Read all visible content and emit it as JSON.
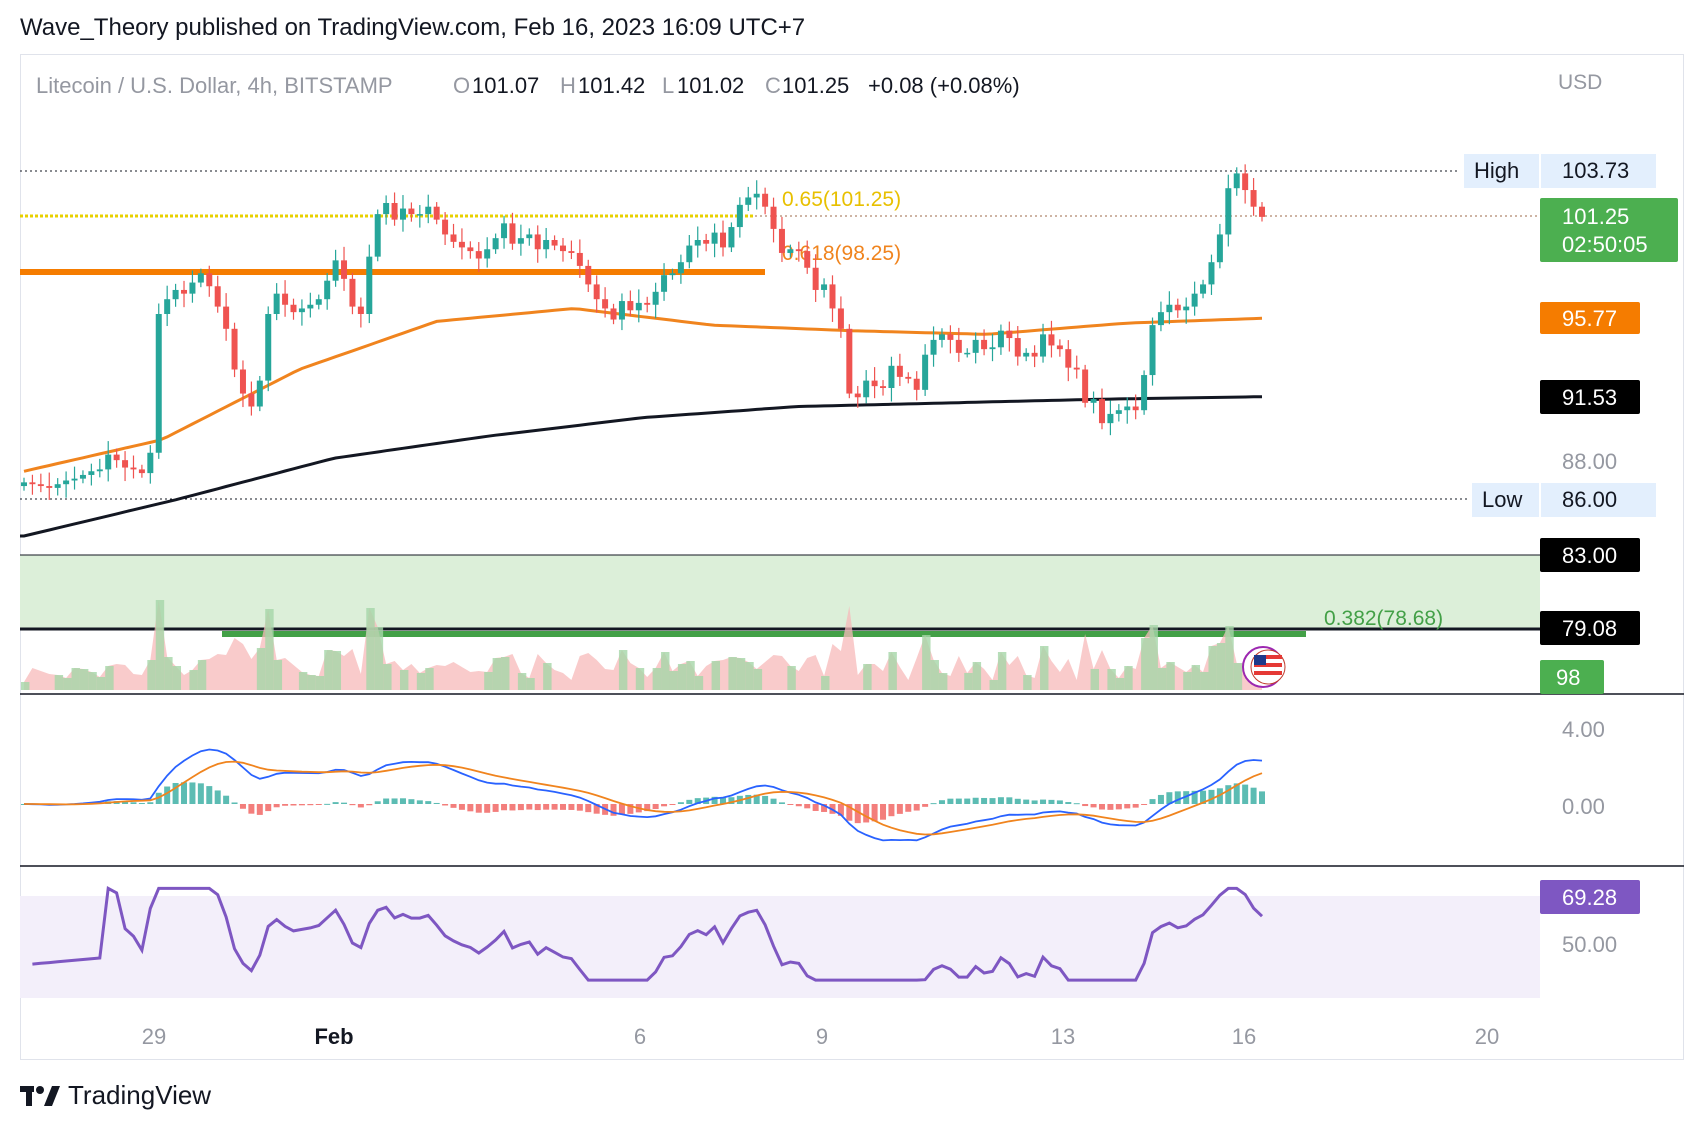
{
  "publisher_line": "Wave_Theory published on TradingView.com, Feb 16, 2023 16:09 UTC+7",
  "brand": "TradingView",
  "colors": {
    "up": "#26a69a",
    "down": "#ef5350",
    "ma50": "#f0841e",
    "ma200": "#131722",
    "fib": "#e8c000",
    "support": "#43a047",
    "rsi": "#7e57c2",
    "macd": "#2962ff",
    "signal": "#f0841e",
    "price_tag": "#4caf50"
  },
  "header": {
    "symbol": "Litecoin / U.S. Dollar, 4h, BITSTAMP",
    "o_label": "O",
    "o": "101.07",
    "h_label": "H",
    "h": "101.42",
    "l_label": "L",
    "l": "101.02",
    "c_label": "C",
    "c": "101.25",
    "change": "+0.08 (+0.08%)",
    "currency": "USD"
  },
  "price_axis": {
    "high_label": "High",
    "high_value": "103.73",
    "low_label": "Low",
    "low_value": "86.00",
    "last_price": "101.25",
    "countdown": "02:50:05",
    "ma50_value": "95.77",
    "ma200_value": "91.53",
    "tick_88": "88.00",
    "zone_top": "83.00",
    "zone_bottom": "79.08",
    "volume_value": "98"
  },
  "macd_axis": {
    "tick_top": "4.00",
    "tick_zero": "0.00"
  },
  "rsi_axis": {
    "tick_mid": "50.00",
    "rsi_value": "69.28"
  },
  "x_axis": [
    "29",
    "Feb",
    "6",
    "9",
    "13",
    "16",
    "20"
  ],
  "chart_data": {
    "type": "candlestick",
    "symbol": "Litecoin / U.S. Dollar",
    "interval": "4h",
    "exchange": "BITSTAMP",
    "price_range": [
      78,
      105
    ],
    "highs_lows": {
      "high": 103.73,
      "low": 86.0
    },
    "last": {
      "open": 101.07,
      "high": 101.42,
      "low": 101.02,
      "close": 101.25,
      "change": 0.08,
      "change_pct": 0.08
    },
    "moving_averages": [
      {
        "value": 95.77
      },
      {
        "value": 91.53
      }
    ],
    "fibonacci": [
      {
        "label": "0.65(101.25)",
        "level": 101.25
      },
      {
        "label": "0.618(98.25)",
        "level": 98.25
      },
      {
        "label": "0.382(78.68)",
        "level": 78.68
      }
    ],
    "support_zone": [
      79.08,
      83.0
    ],
    "volume_last": 98,
    "rsi_last": 69.28,
    "x_ticks": [
      "29",
      "Feb",
      "6",
      "9",
      "13",
      "16",
      "20"
    ],
    "close_series": [
      86.9,
      86.8,
      86.7,
      86.6,
      86.8,
      87.0,
      87.1,
      87.3,
      87.5,
      87.6,
      88.4,
      88.1,
      87.7,
      87.6,
      87.4,
      88.5,
      96.0,
      96.8,
      97.3,
      97.1,
      97.7,
      98.2,
      97.5,
      96.4,
      95.2,
      93.0,
      91.7,
      91.0,
      92.4,
      96.0,
      97.1,
      96.5,
      96.1,
      96.3,
      96.5,
      96.8,
      97.8,
      98.9,
      97.9,
      96.4,
      96.0,
      99.1,
      101.4,
      102.0,
      101.1,
      101.7,
      101.4,
      101.4,
      101.8,
      101.1,
      100.3,
      99.9,
      99.6,
      99.4,
      99.0,
      99.5,
      100.1,
      100.9,
      99.8,
      100.1,
      100.3,
      99.5,
      100.0,
      99.7,
      99.4,
      99.3,
      98.6,
      97.6,
      96.8,
      96.3,
      95.7,
      96.7,
      96.2,
      96.6,
      96.5,
      97.2,
      98.1,
      98.2,
      98.8,
      99.7,
      100.0,
      99.8,
      100.4,
      99.6,
      100.7,
      101.9,
      102.3,
      102.5,
      101.8,
      100.6,
      99.3,
      99.5,
      99.4,
      98.5,
      97.3,
      97.6,
      96.3,
      95.2,
      91.7,
      91.5,
      92.4,
      92.1,
      92.0,
      93.2,
      92.6,
      92.5,
      91.9,
      93.8,
      94.6,
      94.9,
      94.6,
      93.9,
      93.9,
      94.6,
      94.1,
      94.2,
      95.1,
      94.7,
      93.7,
      93.9,
      93.7,
      94.9,
      94.3,
      94.1,
      93.1,
      93.0,
      91.2,
      91.4,
      90.1,
      90.6,
      90.8,
      91.0,
      90.8,
      92.7,
      95.4,
      96.1,
      96.5,
      96.2,
      96.4,
      97.1,
      97.6,
      98.8,
      100.3,
      102.8,
      103.6,
      102.7,
      101.8,
      101.25
    ],
    "ma50_series": [
      87.5,
      89.2,
      93.0,
      95.6,
      96.3,
      95.4,
      95.1,
      94.9,
      95.5,
      95.77
    ],
    "ma200_series": [
      84.0,
      86.0,
      88.2,
      89.4,
      90.4,
      91.0,
      91.2,
      91.4,
      91.53
    ],
    "macd": {
      "macd_last": 2.2,
      "signal_last": 1.3,
      "range": [
        -2,
        4
      ]
    },
    "rsi": {
      "range": [
        40,
        80
      ],
      "band": [
        30,
        70
      ]
    }
  }
}
